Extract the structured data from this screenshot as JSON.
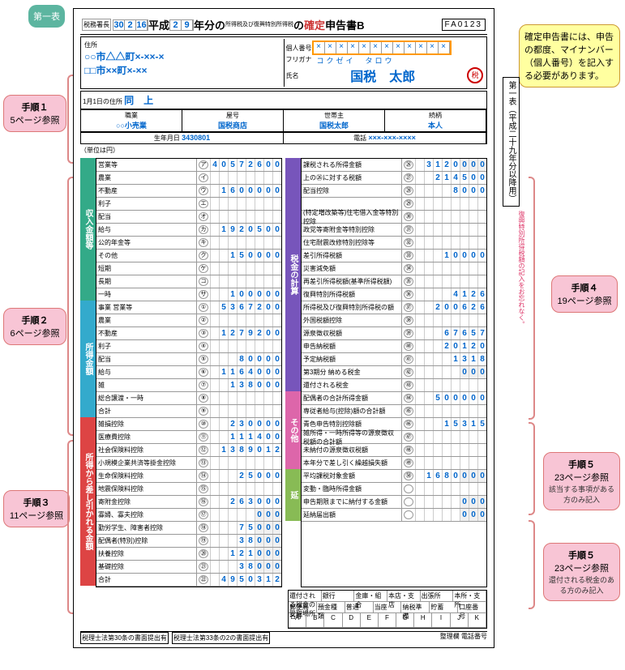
{
  "header": {
    "date": {
      "y": "30",
      "m": "2",
      "d": "16"
    },
    "era": "平成",
    "year": "29",
    "title_mid": "年分の",
    "title_type": "所得税及び復興特別所得税",
    "title_end": "の確定申告書B",
    "fa_code": "FA0123"
  },
  "callouts": {
    "top": "第一表",
    "step1": {
      "title": "手順１",
      "sub": "5ページ参照"
    },
    "step2": {
      "title": "手順２",
      "sub": "6ページ参照"
    },
    "step3": {
      "title": "手順３",
      "sub": "11ページ参照"
    },
    "step4": {
      "title": "手順４",
      "sub": "19ページ参照"
    },
    "step5a": {
      "title": "手順５",
      "sub": "23ページ参照",
      "note": "該当する事項がある方のみ記入"
    },
    "step5b": {
      "title": "手順５",
      "sub": "23ページ参照",
      "note": "還付される税金のある方のみ記入"
    },
    "mynumber_note": "確定申告書には、申告の都度、マイナンバー（個人番号）を記入する必要があります。"
  },
  "mynumber": [
    "×",
    "×",
    "×",
    "×",
    "×",
    "×",
    "×",
    "×",
    "×",
    "×",
    "×",
    "×"
  ],
  "name": {
    "addr1": "○○市△△町×-××-×",
    "addr2": "□□市××町×-××",
    "addr3": "同　上",
    "furigana": "コクゼイ　タロウ",
    "name": "国税　太郎",
    "stamp": "税"
  },
  "meta": {
    "occupation": "○○小売業",
    "shop": "国税商店",
    "head": "国税太郎",
    "relation": "本人",
    "birth": "3430801",
    "phone": "×××-×××-××××"
  },
  "side_tab": "第一表（平成二十九年分以降用）",
  "pink_vertical": "復興特別所得税額の記入をお忘れなく。",
  "sections": {
    "income_amt": "収入金額等",
    "income": "所得金額",
    "deduction": "所得から差し引かれる金額",
    "tax_calc": "税金の計算",
    "other": "その他",
    "ext": "延"
  },
  "left_rows": [
    {
      "lbl": "営業等",
      "n": "ア",
      "val": "40572600",
      "clr": "g"
    },
    {
      "lbl": "農業",
      "n": "イ",
      "val": "",
      "clr": "g"
    },
    {
      "lbl": "不動産",
      "n": "ウ",
      "val": "1600000",
      "clr": "g"
    },
    {
      "lbl": "利子",
      "n": "エ",
      "val": "",
      "clr": "g"
    },
    {
      "lbl": "配当",
      "n": "オ",
      "val": "",
      "clr": "g"
    },
    {
      "lbl": "給与",
      "n": "カ",
      "val": "1920500",
      "clr": "g"
    },
    {
      "lbl": "公的年金等",
      "n": "キ",
      "val": "",
      "clr": "g"
    },
    {
      "lbl": "その他",
      "n": "ク",
      "val": "150000",
      "clr": "g"
    },
    {
      "lbl": "短期",
      "n": "ケ",
      "val": "",
      "clr": "g"
    },
    {
      "lbl": "長期",
      "n": "コ",
      "val": "",
      "clr": "g"
    },
    {
      "lbl": "一時",
      "n": "サ",
      "val": "100000",
      "clr": "g"
    },
    {
      "lbl": "事業 営業等",
      "n": "①",
      "val": "5367200",
      "clr": "c"
    },
    {
      "lbl": "農業",
      "n": "②",
      "val": "",
      "clr": "c"
    },
    {
      "lbl": "不動産",
      "n": "③",
      "val": "1279200",
      "clr": "c"
    },
    {
      "lbl": "利子",
      "n": "④",
      "val": "",
      "clr": "c"
    },
    {
      "lbl": "配当",
      "n": "⑤",
      "val": "80000",
      "clr": "c"
    },
    {
      "lbl": "給与",
      "n": "⑥",
      "val": "1164000",
      "clr": "c"
    },
    {
      "lbl": "雑",
      "n": "⑦",
      "val": "138000",
      "clr": "c"
    },
    {
      "lbl": "総合譲渡・一時",
      "n": "⑧",
      "val": "",
      "clr": "c"
    },
    {
      "lbl": "合計",
      "n": "⑨",
      "val": "",
      "clr": "c"
    },
    {
      "lbl": "雑損控除",
      "n": "⑩",
      "val": "230000",
      "clr": "r"
    },
    {
      "lbl": "医療費控除",
      "n": "⑪",
      "val": "111400",
      "clr": "r"
    },
    {
      "lbl": "社会保険料控除",
      "n": "⑫",
      "val": "1389012",
      "clr": "r"
    },
    {
      "lbl": "小規模企業共済等掛金控除",
      "n": "⑬",
      "val": "",
      "clr": "r"
    },
    {
      "lbl": "生命保険料控除",
      "n": "⑭",
      "val": "25000",
      "clr": "r"
    },
    {
      "lbl": "地震保険料控除",
      "n": "⑮",
      "val": "",
      "clr": "r"
    },
    {
      "lbl": "寄附金控除",
      "n": "⑯",
      "val": "263000",
      "clr": "r"
    },
    {
      "lbl": "寡婦、寡夫控除",
      "n": "⑰",
      "val": "",
      "clr": "r",
      "z": true
    },
    {
      "lbl": "勤労学生、障害者控除",
      "n": "⑱",
      "val": "75",
      "clr": "r",
      "z": true
    },
    {
      "lbl": "配偶者(特別)控除",
      "n": "⑲",
      "val": "38",
      "clr": "r",
      "z": true
    },
    {
      "lbl": "扶養控除",
      "n": "⑳",
      "val": "121",
      "clr": "r",
      "z": true
    },
    {
      "lbl": "基礎控除",
      "n": "㉑",
      "val": "38",
      "clr": "r",
      "z": true
    },
    {
      "lbl": "合計",
      "n": "㉒",
      "val": "4950312",
      "clr": "r"
    }
  ],
  "right_rows": [
    {
      "lbl": "課税される所得金額",
      "n": "㉖",
      "val": "3120",
      "clr": "p",
      "z": true
    },
    {
      "lbl": "上の㉖に対する税額",
      "n": "㉗",
      "val": "214500",
      "clr": "p"
    },
    {
      "lbl": "配当控除",
      "n": "㉘",
      "val": "8000",
      "clr": "p"
    },
    {
      "lbl": "",
      "n": "㉙",
      "val": "",
      "clr": "p"
    },
    {
      "lbl": "(特定増改築等)住宅借入金等特別控除",
      "n": "㉚",
      "val": "",
      "clr": "p"
    },
    {
      "lbl": "政党等寄附金等特別控除",
      "n": "㉛",
      "val": "",
      "clr": "p"
    },
    {
      "lbl": "住宅耐震改修特別控除等",
      "n": "㉜",
      "val": "",
      "clr": "p"
    },
    {
      "lbl": "差引所得税額",
      "n": "㉝",
      "val": "10000",
      "clr": "p"
    },
    {
      "lbl": "災害減免額",
      "n": "㉞",
      "val": "",
      "clr": "p"
    },
    {
      "lbl": "再差引所得税額(基準所得税額)",
      "n": "㉟",
      "val": "",
      "clr": "p"
    },
    {
      "lbl": "復興特別所得税額",
      "n": "㊱",
      "val": "4126",
      "clr": "p"
    },
    {
      "lbl": "所得税及び復興特別所得税の額",
      "n": "㊲",
      "val": "200626",
      "clr": "p"
    },
    {
      "lbl": "外国税額控除",
      "n": "㊳",
      "val": "",
      "clr": "p"
    },
    {
      "lbl": "源泉徴収税額",
      "n": "㊴",
      "val": "67657",
      "clr": "p"
    },
    {
      "lbl": "申告納税額",
      "n": "㊵",
      "val": "20120",
      "clr": "p"
    },
    {
      "lbl": "予定納税額",
      "n": "㊶",
      "val": "1318",
      "clr": "p"
    },
    {
      "lbl": "第3期分 納める税金",
      "n": "㊷",
      "val": "",
      "clr": "p",
      "z": true
    },
    {
      "lbl": "還付される税金",
      "n": "㊸",
      "val": "",
      "clr": "p"
    },
    {
      "lbl": "配偶者の合計所得金額",
      "n": "㊹",
      "val": "500000",
      "clr": "k"
    },
    {
      "lbl": "専従者給与(控除)額の合計額",
      "n": "㊺",
      "val": "",
      "clr": "k"
    },
    {
      "lbl": "青色申告特別控除額",
      "n": "㊻",
      "val": "15315",
      "clr": "k"
    },
    {
      "lbl": "雑所得・一時所得等の源泉徴収税額の合計額",
      "n": "㊼",
      "val": "",
      "clr": "k"
    },
    {
      "lbl": "未納付の源泉徴収税額",
      "n": "㊽",
      "val": "",
      "clr": "k"
    },
    {
      "lbl": "本年分で差し引く繰越損失額",
      "n": "㊾",
      "val": "",
      "clr": "k"
    },
    {
      "lbl": "平均課税対象金額",
      "n": "㊿",
      "val": "1680",
      "clr": "l",
      "z": true
    },
    {
      "lbl": "変動・臨時所得金額",
      "n": "",
      "val": "",
      "clr": "l"
    },
    {
      "lbl": "申告期限までに納付する金額",
      "n": "",
      "val": "",
      "clr": "l",
      "z": true
    },
    {
      "lbl": "延納届出額",
      "n": "",
      "val": "",
      "clr": "l",
      "z": true
    }
  ],
  "bottom": {
    "bank_labels": [
      "還付される税金の受取場所",
      "銀行",
      "金庫・組合",
      "本店・支店",
      "出張所",
      "本所・支所"
    ],
    "account_labels": [
      "郵便局名等",
      "預金種類",
      "普通",
      "当座",
      "納税準備",
      "貯蓄",
      "口座番号"
    ],
    "boxes": "ABCDEFGHIJK"
  }
}
